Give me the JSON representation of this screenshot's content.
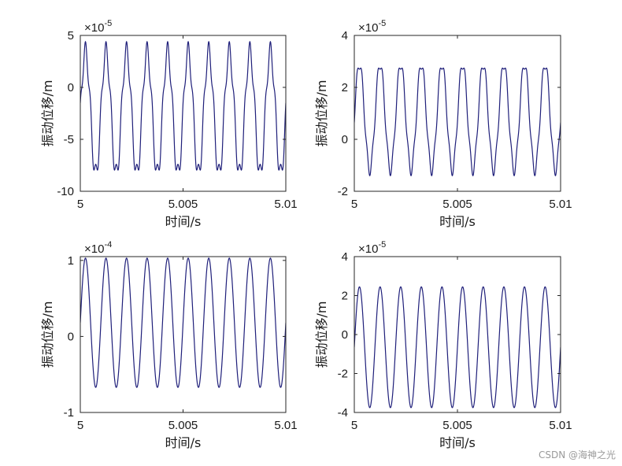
{
  "watermark": "CSDN @海神之光",
  "colors": {
    "series": "#1f1f7a",
    "axes": "#262626",
    "background": "#ffffff"
  },
  "chart_data": [
    {
      "type": "line",
      "xlabel": "时间/s",
      "ylabel": "振动位移/m",
      "exponent": {
        "base": "×10",
        "power": "-5"
      },
      "xlim": [
        5,
        5.01
      ],
      "ylim": [
        -10,
        5
      ],
      "xticks": [
        5,
        5.005,
        5.01
      ],
      "xtick_labels": [
        "5",
        "5.005",
        "5.01"
      ],
      "yticks": [
        -10,
        -5,
        0,
        5
      ],
      "ytick_labels": [
        "-10",
        "-5",
        "0",
        "5"
      ],
      "grid": false,
      "series": [
        {
          "model": {
            "frequency_hz": 1000,
            "offset": -2.4,
            "amplitude": 5.9,
            "harmonic_amplitude": 0.9,
            "harmonic_order": 4
          }
        }
      ]
    },
    {
      "type": "line",
      "xlabel": "时间/s",
      "ylabel": "振动位移/m",
      "exponent": {
        "base": "×10",
        "power": "-5"
      },
      "xlim": [
        5,
        5.01
      ],
      "ylim": [
        -2,
        4
      ],
      "xticks": [
        5,
        5.005,
        5.01
      ],
      "xtick_labels": [
        "5",
        "5.005",
        "5.01"
      ],
      "yticks": [
        -2,
        0,
        2,
        4
      ],
      "ytick_labels": [
        "-2",
        "0",
        "2",
        "4"
      ],
      "grid": false,
      "series": [
        {
          "model": {
            "frequency_hz": 1000,
            "offset": 0.85,
            "amplitude": 2.05,
            "harmonic_amplitude": -0.2,
            "harmonic_order": 4
          }
        }
      ]
    },
    {
      "type": "line",
      "xlabel": "时间/s",
      "ylabel": "振动位移/m",
      "exponent": {
        "base": "×10",
        "power": "-4"
      },
      "xlim": [
        5,
        5.01
      ],
      "ylim": [
        -1,
        1.05
      ],
      "xticks": [
        5,
        5.005,
        5.01
      ],
      "xtick_labels": [
        "5",
        "5.005",
        "5.01"
      ],
      "yticks": [
        -1,
        0,
        1
      ],
      "ytick_labels": [
        "-1",
        "0",
        "1"
      ],
      "grid": false,
      "series": [
        {
          "model": {
            "frequency_hz": 1000,
            "offset": 0.18,
            "amplitude": 0.85,
            "harmonic_amplitude": 0,
            "harmonic_order": 4
          }
        }
      ]
    },
    {
      "type": "line",
      "xlabel": "时间/s",
      "ylabel": "振动位移/m",
      "exponent": {
        "base": "×10",
        "power": "-5"
      },
      "xlim": [
        5,
        5.01
      ],
      "ylim": [
        -4,
        4
      ],
      "xticks": [
        5,
        5.005,
        5.01
      ],
      "xtick_labels": [
        "5",
        "5.005",
        "5.01"
      ],
      "yticks": [
        -4,
        -2,
        0,
        2,
        4
      ],
      "ytick_labels": [
        "-4",
        "-2",
        "0",
        "2",
        "4"
      ],
      "grid": false,
      "series": [
        {
          "model": {
            "frequency_hz": 1000,
            "offset": -0.65,
            "amplitude": 3.1,
            "harmonic_amplitude": 0,
            "harmonic_order": 4
          }
        }
      ]
    }
  ]
}
